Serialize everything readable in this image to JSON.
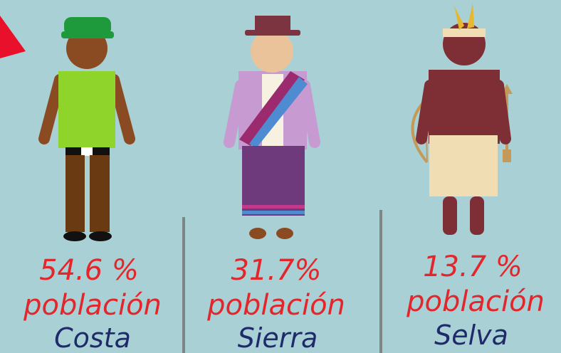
{
  "items": [
    {
      "percent": "54.6 %",
      "label": "población",
      "region": "Costa"
    },
    {
      "percent": "31.7%",
      "label": "población",
      "region": "Sierra"
    },
    {
      "percent": "13.7 %",
      "label": "población",
      "region": "Selva"
    }
  ]
}
